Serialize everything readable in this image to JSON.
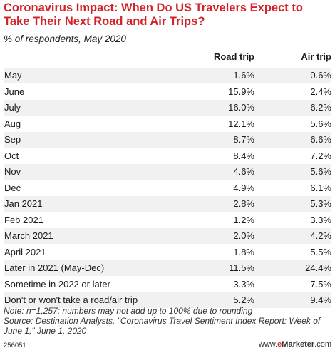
{
  "title": "Coronavirus Impact: When Do US Travelers Expect to Take Their Next Road and Air Trips?",
  "subtitle": "% of respondents, May 2020",
  "chart_data": {
    "type": "table",
    "columns": [
      "",
      "Road trip",
      "Air trip"
    ],
    "rows": [
      {
        "label": "May",
        "road": "1.6%",
        "air": "0.6%"
      },
      {
        "label": "June",
        "road": "15.9%",
        "air": "2.4%"
      },
      {
        "label": "July",
        "road": "16.0%",
        "air": "6.2%"
      },
      {
        "label": "Aug",
        "road": "12.1%",
        "air": "5.6%"
      },
      {
        "label": "Sep",
        "road": "8.7%",
        "air": "6.6%"
      },
      {
        "label": "Oct",
        "road": "8.4%",
        "air": "7.2%"
      },
      {
        "label": "Nov",
        "road": "4.6%",
        "air": "5.6%"
      },
      {
        "label": "Dec",
        "road": "4.9%",
        "air": "6.1%"
      },
      {
        "label": "Jan 2021",
        "road": "2.8%",
        "air": "5.3%"
      },
      {
        "label": "Feb 2021",
        "road": "1.2%",
        "air": "3.3%"
      },
      {
        "label": "March 2021",
        "road": "2.0%",
        "air": "4.2%"
      },
      {
        "label": "April 2021",
        "road": "1.8%",
        "air": "5.5%"
      },
      {
        "label": "Later in 2021 (May-Dec)",
        "road": "11.5%",
        "air": "24.4%"
      },
      {
        "label": "Sometime in 2022 or later",
        "road": "3.3%",
        "air": "7.5%"
      },
      {
        "label": "Don't or won't take a road/air trip",
        "road": "5.2%",
        "air": "9.4%"
      }
    ]
  },
  "note": "Note: n=1,257; numbers may not add up to 100% due to rounding\nSource: Destination Analysts, \"Coronavirus Travel Sentiment Index Report: Week of June 1,\" June 1, 2020",
  "chart_id": "256051",
  "brand": {
    "prefix": "www.",
    "accent": "e",
    "name": "Marketer",
    "suffix": ".com"
  },
  "colors": {
    "title": "#d2232a",
    "row_shade": "#f1f1f1"
  }
}
